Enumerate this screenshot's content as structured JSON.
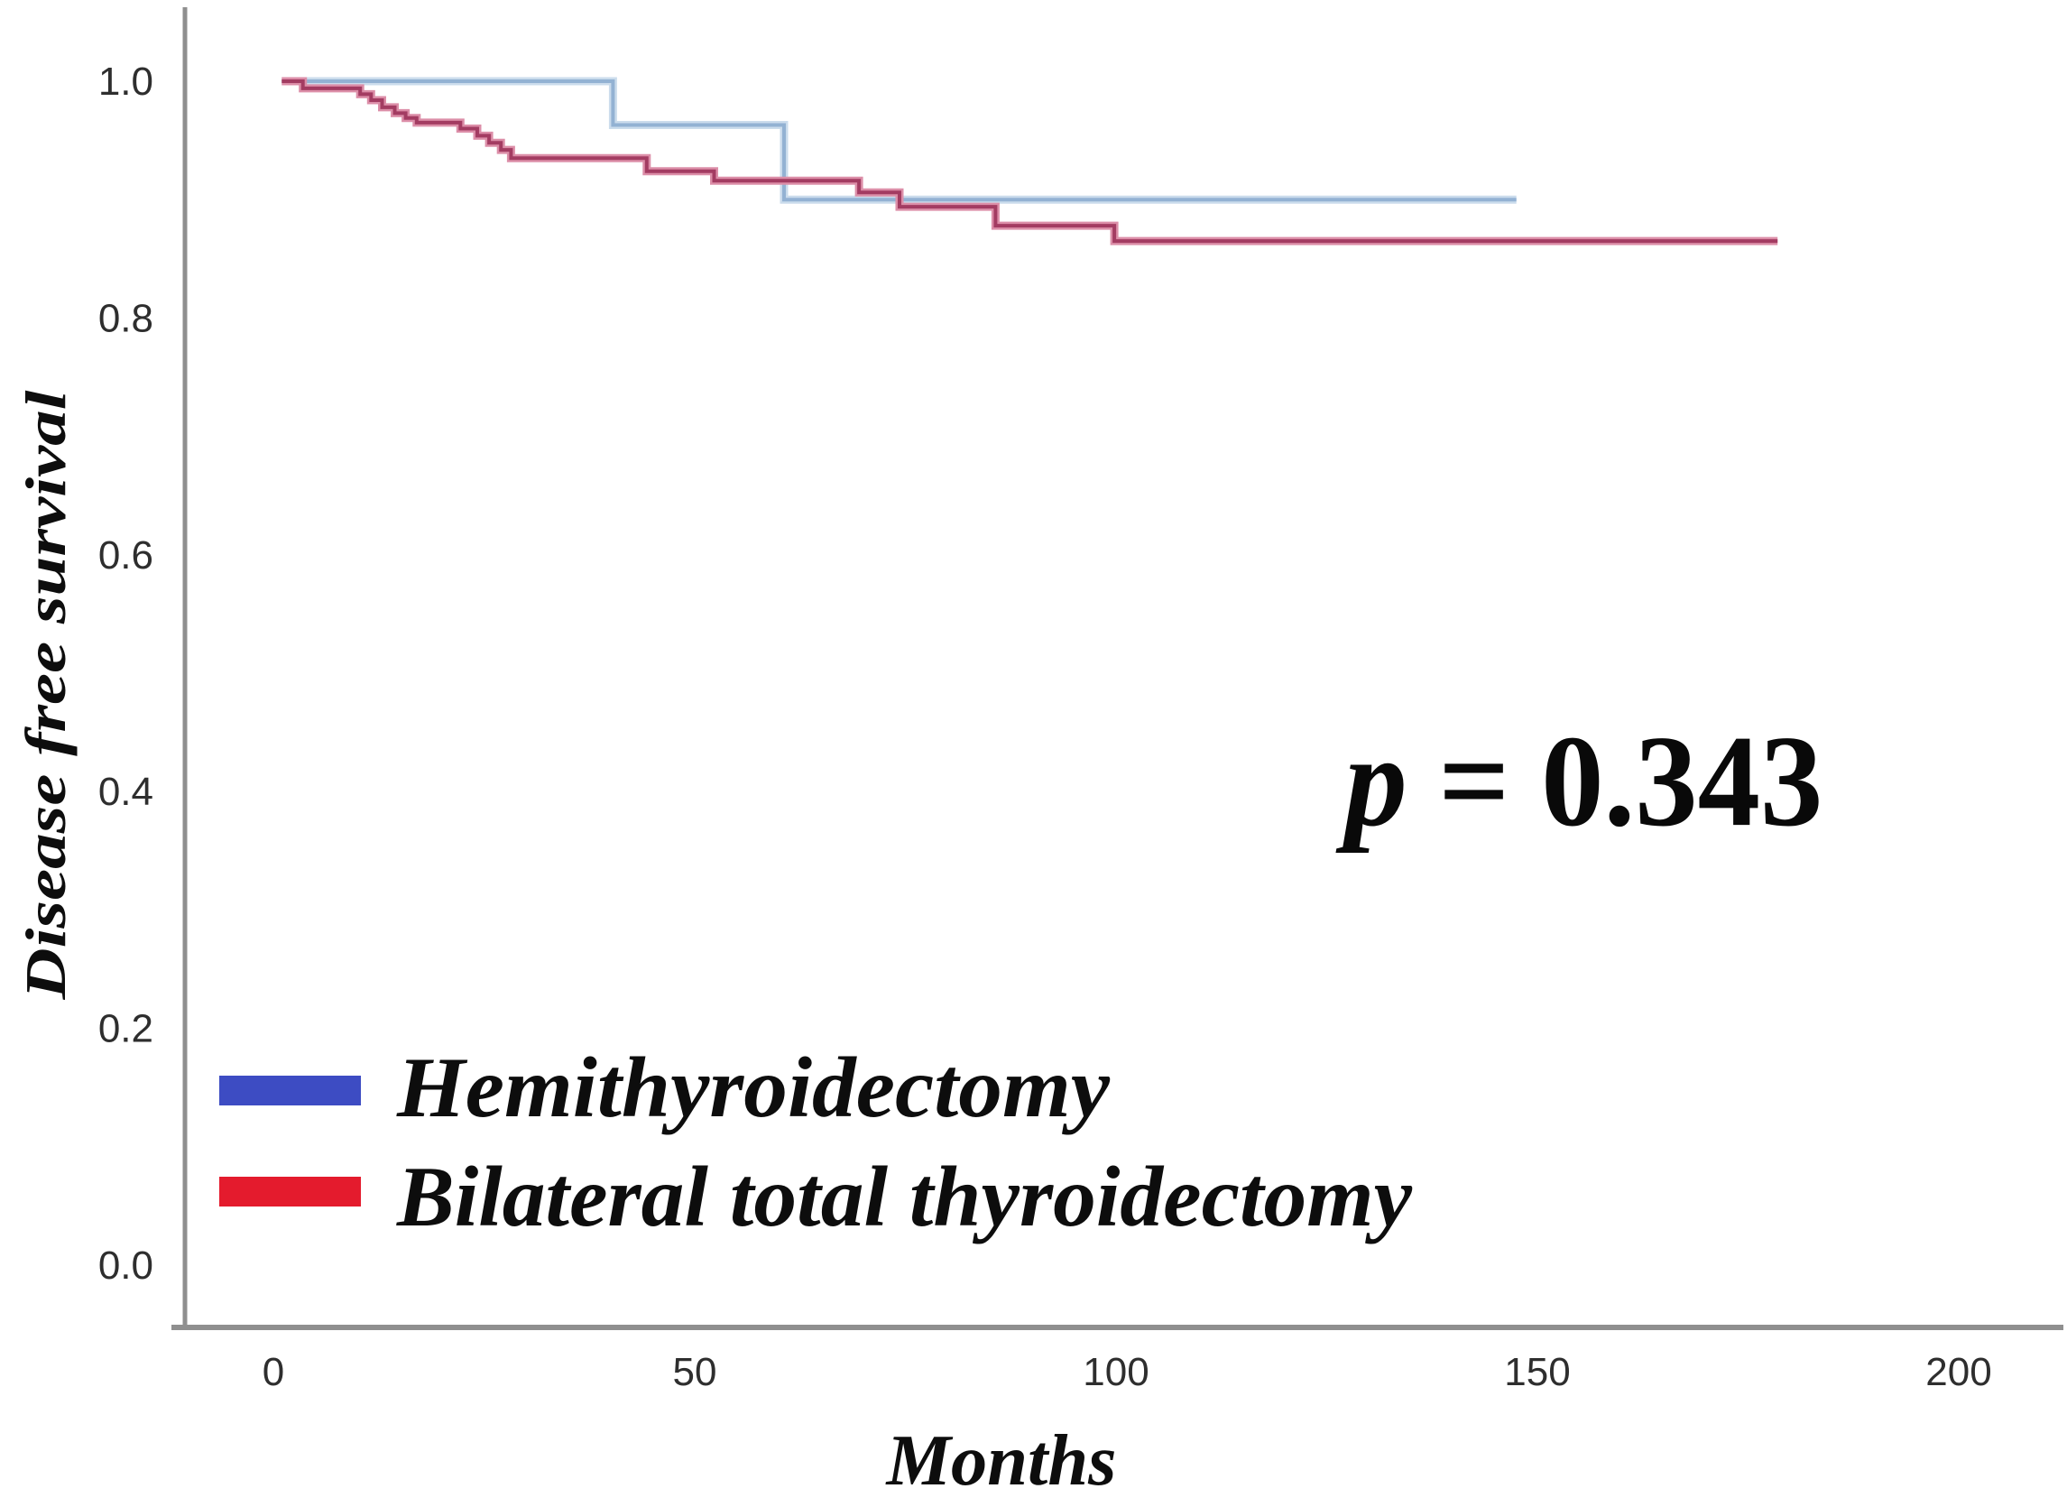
{
  "figure": {
    "background": "#ffffff"
  },
  "chart_data": {
    "type": "line",
    "subtype": "kaplan_meier_step_survival",
    "title": "",
    "xlabel": "Months",
    "ylabel": "Disease free survival",
    "x_tick_labels": [
      "0",
      "50",
      "100",
      "150",
      "200"
    ],
    "y_tick_labels": [
      "1.0",
      "0.8",
      "0.6",
      "0.4",
      "0.2",
      "0.0"
    ],
    "xlim": [
      0,
      212
    ],
    "ylim": [
      0.0,
      1.04
    ],
    "grid": false,
    "legend_position": "bottom-left",
    "axis_color": "#8f8f8f",
    "tick_label_color": "#2e2e2e",
    "annotation": {
      "full_text": "p = 0.343",
      "symbol": "p",
      "rest": " = 0.343",
      "x_month": 155.5,
      "y_value": 0.41
    },
    "series": [
      {
        "name": "Hemithyroidectomy",
        "legend_color": "#3d4cc3",
        "line_color": "#93b2d3",
        "halo_color": "#cbdcec",
        "end_month": 147.5,
        "steps": [
          [
            1,
            1.0
          ],
          [
            40.3,
            0.963
          ],
          [
            60.6,
            0.9
          ]
        ]
      },
      {
        "name": "Bilateral total thyroidectomy",
        "legend_color": "#e41b2d",
        "line_color": "#a33c62",
        "halo_color": "#dc8ea8",
        "end_month": 178.5,
        "steps": [
          [
            1,
            1.0
          ],
          [
            3.5,
            0.994
          ],
          [
            10.3,
            0.989
          ],
          [
            11.6,
            0.984
          ],
          [
            12.9,
            0.978
          ],
          [
            14.4,
            0.973
          ],
          [
            15.7,
            0.969
          ],
          [
            17.0,
            0.965
          ],
          [
            22.2,
            0.96
          ],
          [
            24.2,
            0.954
          ],
          [
            25.6,
            0.948
          ],
          [
            27.0,
            0.942
          ],
          [
            28.2,
            0.935
          ],
          [
            44.3,
            0.924
          ],
          [
            52.3,
            0.916
          ],
          [
            69.5,
            0.906
          ],
          [
            74.3,
            0.894
          ],
          [
            85.7,
            0.878
          ],
          [
            99.8,
            0.865
          ]
        ]
      }
    ]
  }
}
